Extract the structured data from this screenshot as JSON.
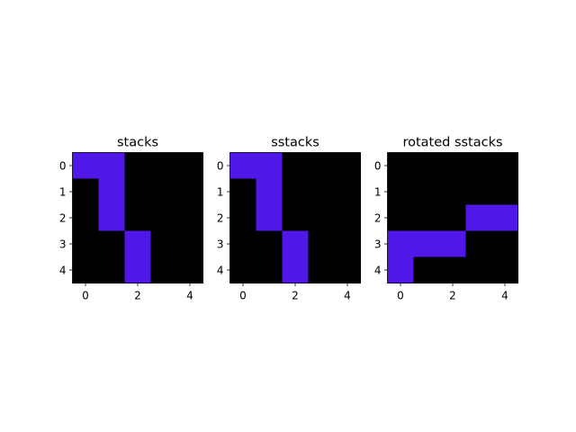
{
  "chart_data": [
    {
      "type": "heatmap",
      "title": "stacks",
      "rows": 5,
      "cols": 5,
      "xticks": [
        0,
        2,
        4
      ],
      "yticks": [
        0,
        1,
        2,
        3,
        4
      ],
      "values": [
        [
          1,
          1,
          0,
          0,
          0
        ],
        [
          0,
          1,
          0,
          0,
          0
        ],
        [
          0,
          1,
          0,
          0,
          0
        ],
        [
          0,
          0,
          1,
          0,
          0
        ],
        [
          0,
          0,
          1,
          0,
          0
        ]
      ]
    },
    {
      "type": "heatmap",
      "title": "sstacks",
      "rows": 5,
      "cols": 5,
      "xticks": [
        0,
        2,
        4
      ],
      "yticks": [
        0,
        1,
        2,
        3,
        4
      ],
      "values": [
        [
          1,
          1,
          0,
          0,
          0
        ],
        [
          0,
          1,
          0,
          0,
          0
        ],
        [
          0,
          1,
          0,
          0,
          0
        ],
        [
          0,
          0,
          1,
          0,
          0
        ],
        [
          0,
          0,
          1,
          0,
          0
        ]
      ]
    },
    {
      "type": "heatmap",
      "title": "rotated sstacks",
      "rows": 5,
      "cols": 5,
      "xticks": [
        0,
        2,
        4
      ],
      "yticks": [
        0,
        1,
        2,
        3,
        4
      ],
      "values": [
        [
          0,
          0,
          0,
          0,
          0
        ],
        [
          0,
          0,
          0,
          0,
          0
        ],
        [
          0,
          0,
          0,
          1,
          1
        ],
        [
          1,
          1,
          1,
          0,
          0
        ],
        [
          1,
          0,
          0,
          0,
          0
        ]
      ]
    }
  ],
  "colors": {
    "on": "#5018e8",
    "off": "#000000",
    "axis": "#000000",
    "text": "#000000"
  }
}
